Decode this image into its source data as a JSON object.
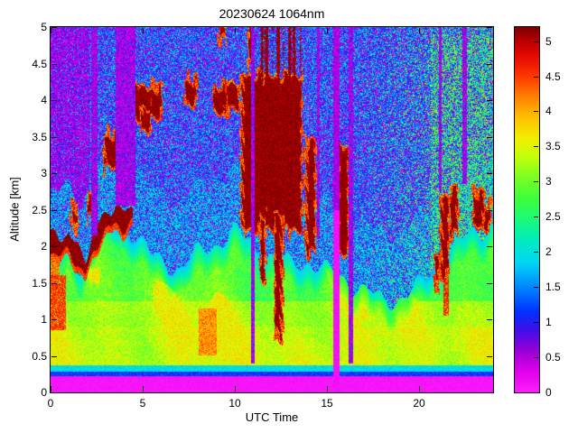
{
  "chart_data": {
    "type": "heatmap",
    "title": "20230624 1064nm",
    "xlabel": "UTC Time",
    "ylabel": "Altitude [km]",
    "xlim": [
      0,
      24
    ],
    "ylim": [
      0,
      5
    ],
    "clim": [
      0,
      5.2
    ],
    "x_ticks": [
      "0",
      "5",
      "10",
      "15",
      "20"
    ],
    "y_ticks": [
      "0",
      "0.5",
      "1",
      "1.5",
      "2",
      "2.5",
      "3",
      "3.5",
      "4",
      "4.5",
      "5"
    ],
    "colorbar_ticks": [
      "0",
      "0.5",
      "1",
      "1.5",
      "2",
      "2.5",
      "3",
      "3.5",
      "4",
      "4.5",
      "5"
    ],
    "seed": 7,
    "colormap_stops": [
      [
        0.0,
        255,
        30,
        255
      ],
      [
        0.3,
        225,
        0,
        235
      ],
      [
        0.6,
        150,
        0,
        215
      ],
      [
        0.9,
        60,
        15,
        235
      ],
      [
        1.15,
        0,
        50,
        255
      ],
      [
        1.5,
        0,
        135,
        255
      ],
      [
        1.85,
        0,
        215,
        245
      ],
      [
        2.15,
        0,
        235,
        195
      ],
      [
        2.45,
        25,
        250,
        125
      ],
      [
        2.75,
        60,
        255,
        60
      ],
      [
        3.05,
        120,
        255,
        35
      ],
      [
        3.35,
        195,
        255,
        10
      ],
      [
        3.6,
        240,
        240,
        0
      ],
      [
        3.9,
        255,
        195,
        0
      ],
      [
        4.2,
        255,
        130,
        0
      ],
      [
        4.5,
        255,
        55,
        0
      ],
      [
        4.8,
        228,
        8,
        0
      ],
      [
        5.0,
        185,
        0,
        0
      ],
      [
        5.2,
        122,
        0,
        0
      ]
    ],
    "surface_bands": [
      {
        "h_max": 0.22,
        "v0": 0.03,
        "v1": 0.15
      },
      {
        "h_max": 0.28,
        "v0": 0.9,
        "v1": 1.4
      },
      {
        "h_max": 0.37,
        "v0": 1.7,
        "v1": 2.2
      }
    ],
    "bl_top_points": [
      [
        0,
        1.8
      ],
      [
        1,
        1.9
      ],
      [
        1.7,
        1.7
      ],
      [
        2.5,
        2.2
      ],
      [
        3.5,
        2.35
      ],
      [
        4.5,
        2.2
      ],
      [
        5.5,
        1.85
      ],
      [
        7,
        1.7
      ],
      [
        8,
        1.9
      ],
      [
        9,
        2.05
      ],
      [
        10,
        2.2
      ],
      [
        11,
        2.0
      ],
      [
        12,
        1.85
      ],
      [
        13,
        1.75
      ],
      [
        14,
        1.8
      ],
      [
        15,
        1.65
      ],
      [
        16,
        1.55
      ],
      [
        17,
        1.4
      ],
      [
        18,
        1.25
      ],
      [
        19,
        1.3
      ],
      [
        20,
        1.45
      ],
      [
        21,
        1.8
      ],
      [
        22,
        2.0
      ],
      [
        23,
        2.2
      ],
      [
        24,
        2.3
      ]
    ],
    "background": {
      "p_purple": 0.38,
      "p_blue": 0.38,
      "left_purple": {
        "t_max": 2.1,
        "h_min": 2.2,
        "p_purple": 0.82,
        "p_blue": 0.13
      },
      "plume_band": 0.9,
      "green_start": 16.5,
      "green_rate": 0.04,
      "green_max": 0.3,
      "dense_green": {
        "t0": 20.6,
        "t1": 23.9,
        "h_max": 4.9,
        "p": 0.42
      }
    },
    "aerosol_layer": {
      "t_max": 4.45,
      "half_width": 0.12,
      "points": [
        [
          0,
          2.05
        ],
        [
          0.5,
          2.0
        ],
        [
          1.0,
          2.05
        ],
        [
          1.5,
          1.85
        ],
        [
          1.9,
          1.72
        ],
        [
          2.3,
          2.0
        ],
        [
          2.7,
          2.25
        ],
        [
          3.1,
          2.35
        ],
        [
          3.5,
          2.42
        ],
        [
          3.9,
          2.35
        ],
        [
          4.4,
          2.42
        ]
      ]
    },
    "red_patches": [
      [
        0.0,
        0.85,
        0.85,
        1.6,
        4.5
      ],
      [
        0.0,
        0.5,
        1.6,
        1.85,
        4.3
      ],
      [
        8.05,
        9.0,
        0.5,
        1.15,
        4.15
      ],
      [
        21.3,
        21.6,
        1.05,
        1.65,
        4.6
      ]
    ],
    "clouds": [
      [
        3.0,
        3.7,
        3.1,
        3.5
      ],
      [
        4.35,
        5.95,
        3.8,
        4.15
      ],
      [
        5.0,
        5.35,
        3.62,
        3.85
      ],
      [
        7.3,
        7.85,
        4.0,
        4.25
      ],
      [
        8.9,
        9.55,
        3.85,
        4.15
      ],
      [
        9.65,
        10.2,
        3.9,
        4.2
      ],
      [
        9.2,
        9.45,
        4.85,
        5.0
      ],
      [
        10.75,
        10.95,
        4.5,
        5.0
      ],
      [
        10.45,
        13.6,
        2.25,
        4.3
      ],
      [
        12.2,
        12.5,
        0.8,
        2.4
      ],
      [
        11.4,
        11.62,
        1.6,
        2.4
      ],
      [
        13.9,
        14.35,
        1.95,
        3.4
      ],
      [
        15.7,
        16.05,
        1.9,
        3.3
      ],
      [
        21.25,
        21.52,
        1.6,
        2.65
      ],
      [
        21.75,
        22.0,
        2.2,
        2.75
      ],
      [
        22.95,
        23.45,
        2.3,
        2.7
      ],
      [
        20.85,
        21.05,
        1.45,
        1.8
      ],
      [
        23.5,
        23.85,
        2.3,
        2.55
      ],
      [
        1.15,
        1.45,
        2.3,
        2.5
      ],
      [
        2.05,
        2.3,
        2.42,
        2.6
      ]
    ],
    "streak_zone": {
      "t0": 11.15,
      "t1": 13.65,
      "h0": 4.2
    },
    "columns": [
      {
        "t0": 2.2,
        "t1": 2.55,
        "hmin": 2.15,
        "deep": false
      },
      {
        "t0": 3.55,
        "t1": 4.6,
        "hmin": 2.55,
        "deep": false
      },
      {
        "t0": 10.85,
        "t1": 11.08,
        "hmin": 0.4,
        "deep": false
      },
      {
        "t0": 14.45,
        "t1": 14.62,
        "hmin": 2.1,
        "deep": false
      },
      {
        "t0": 15.35,
        "t1": 15.68,
        "hmin": 0.0,
        "deep": true
      },
      {
        "t0": 16.15,
        "t1": 16.42,
        "hmin": 0.4,
        "deep": false
      },
      {
        "t0": 21.05,
        "t1": 21.22,
        "hmin": 2.75,
        "deep": false
      },
      {
        "t0": 22.35,
        "t1": 22.58,
        "hmin": 2.85,
        "deep": false
      }
    ]
  }
}
